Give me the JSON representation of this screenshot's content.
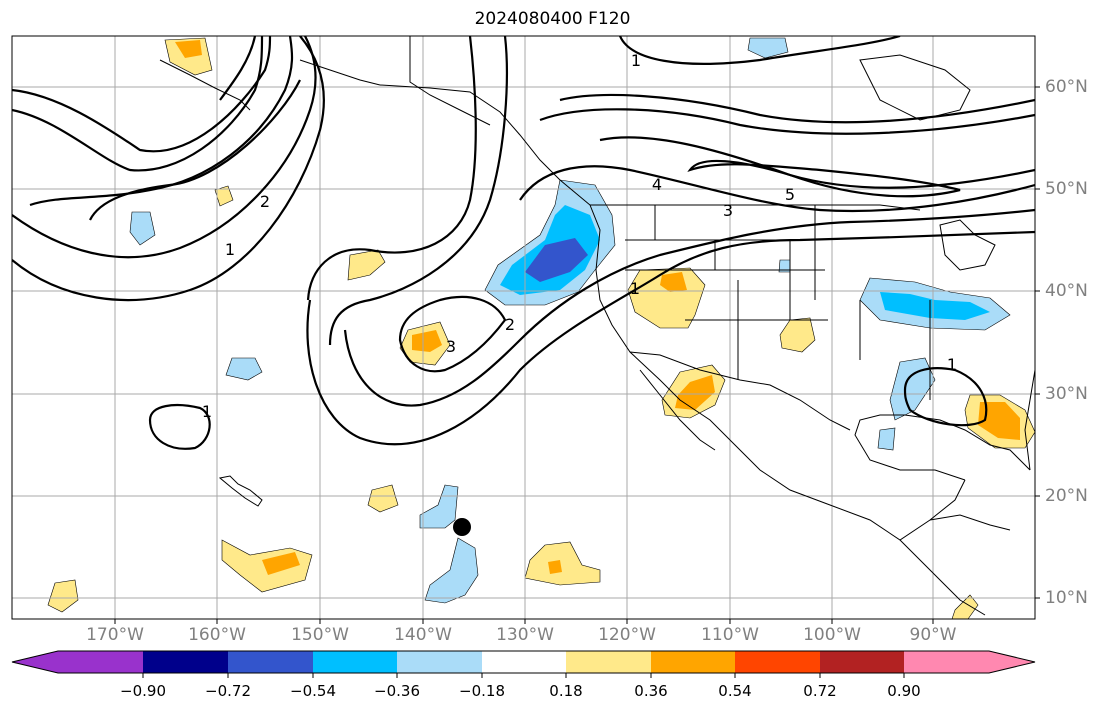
{
  "title": "2024080400 F120",
  "latitude_labels": [
    "60°N",
    "50°N",
    "40°N",
    "30°N",
    "20°N",
    "10°N"
  ],
  "longitude_labels": [
    "170°W",
    "160°W",
    "150°W",
    "140°W",
    "130°W",
    "120°W",
    "110°W",
    "100°W",
    "90°W"
  ],
  "contour_labels": [
    "1",
    "2",
    "3",
    "4",
    "5",
    "1",
    "2",
    "1",
    "3",
    "1",
    "1"
  ],
  "colorbar": {
    "tick_labels": [
      "−0.90",
      "−0.72",
      "−0.54",
      "−0.36",
      "−0.18",
      "0.18",
      "0.36",
      "0.54",
      "0.72",
      "0.90"
    ],
    "colors": [
      "#9932cc",
      "#00008b",
      "#3355cc",
      "#00bfff",
      "#aadcf8",
      "#ffffff",
      "#ffe98a",
      "#ffa500",
      "#ff4500",
      "#b22222",
      "#ff88b0"
    ]
  },
  "colors": {
    "positive_light": "#ffe98a",
    "positive_mid": "#ffa500",
    "negative_light": "#aadcf8",
    "negative_mid": "#00bfff",
    "negative_strong": "#3355cc",
    "contour": "#000000",
    "grid": "#a9a9a9",
    "axis_label": "#808080"
  },
  "marker": {
    "type": "black-dot"
  }
}
